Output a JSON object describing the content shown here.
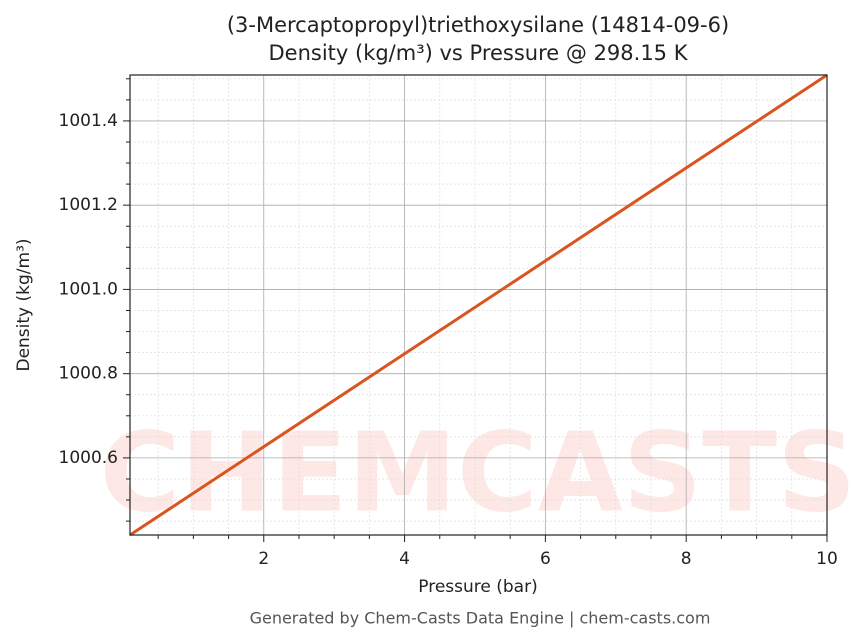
{
  "chart_data": {
    "type": "line",
    "title": "(3-Mercaptopropyl)triethoxysilane (14814-09-6)",
    "subtitle": "Density (kg/m³) vs Pressure @ 298.15 K",
    "x_label": "Pressure (bar)",
    "y_label": "Density (kg/m³)",
    "footer": "Generated by Chem-Casts Data Engine | chem-casts.com",
    "watermark": "CHEMCASTS",
    "x": [
      0.1,
      10
    ],
    "series": [
      {
        "name": "Density",
        "color": "#d9541e",
        "values": [
          1000.417,
          1001.509
        ]
      }
    ],
    "xlim": [
      0.1,
      10
    ],
    "ylim": [
      1000.417,
      1001.509
    ],
    "xticks": [
      2,
      4,
      6,
      8,
      10
    ],
    "yticks": [
      1000.6,
      1000.8,
      {
        "value": 1001.0,
        "label": "1001.0"
      },
      1001.2,
      1001.4
    ],
    "xminorticks": [
      0.5,
      1,
      1.5,
      2.5,
      3,
      3.5,
      4.5,
      5,
      5.5,
      6.5,
      7,
      7.5,
      8.5,
      9,
      9.5
    ],
    "yminorticks": [
      1000.45,
      1000.5,
      1000.55,
      1000.65,
      1000.7,
      1000.75,
      1000.85,
      1000.9,
      1000.95,
      1001.05,
      1001.1,
      1001.15,
      1001.25,
      1001.3,
      1001.35,
      1001.45,
      1001.5
    ],
    "grid": true
  }
}
